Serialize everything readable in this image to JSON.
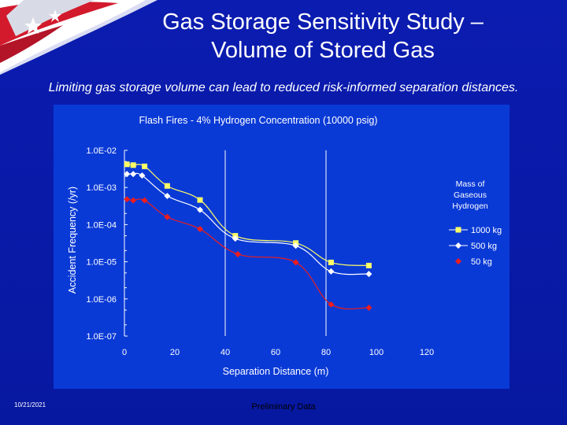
{
  "slide": {
    "title_line1": "Gas Storage Sensitivity Study –",
    "title_line2": "Volume of Stored Gas",
    "subtitle": "Limiting gas storage volume can lead to reduced risk-informed separation distances.",
    "date": "10/21/2021",
    "footer": "Preliminary Data"
  },
  "colors": {
    "background": "#0a1aa8",
    "chart_background": "#0a3ad6",
    "text": "#ffffff",
    "grid": "#ffffff",
    "series_1000kg": "#ffff66",
    "series_500kg": "#ffffff",
    "series_50kg": "#ee1c1c"
  },
  "chart_data": {
    "type": "line",
    "title": "Flash Fires - 4% Hydrogen Concentration (10000 psig)",
    "xlabel": "Separation Distance (m)",
    "ylabel": "Accident Frequency (/yr)",
    "y_scale": "log",
    "xlim": [
      0,
      120
    ],
    "ylim": [
      1e-07,
      0.01
    ],
    "x_ticks": [
      "0",
      "20",
      "40",
      "60",
      "80",
      "100",
      "120"
    ],
    "y_ticks": [
      "1.0E-02",
      "1.0E-03",
      "1.0E-04",
      "1.0E-05",
      "1.0E-06",
      "1.0E-07"
    ],
    "y_tick_values": [
      0.01,
      0.001,
      0.0001,
      1e-05,
      1e-06,
      1e-07
    ],
    "vertical_gridlines": [
      40,
      80
    ],
    "legend_title": "Mass of Gaseous Hydrogen",
    "legend_position": "right",
    "series": [
      {
        "name": "1000 kg",
        "marker": "square",
        "color": "#ffff66",
        "points": [
          [
            1,
            0.0042
          ],
          [
            3.5,
            0.004
          ],
          [
            8,
            0.0037
          ],
          [
            17,
            0.0011
          ],
          [
            30,
            0.00046
          ],
          [
            44,
            5e-05
          ],
          [
            68,
            3.2e-05
          ],
          [
            82,
            9.6e-06
          ],
          [
            97,
            7.9e-06
          ]
        ]
      },
      {
        "name": "500 kg",
        "marker": "diamond",
        "color": "#ffffff",
        "points": [
          [
            1,
            0.0023
          ],
          [
            3.5,
            0.0023
          ],
          [
            7,
            0.0021
          ],
          [
            17,
            0.00059
          ],
          [
            30,
            0.00025
          ],
          [
            44,
            4.2e-05
          ],
          [
            68,
            2.7e-05
          ],
          [
            82,
            5.5e-06
          ],
          [
            97,
            4.7e-06
          ]
        ]
      },
      {
        "name": "50 kg",
        "marker": "diamond",
        "color": "#ee1c1c",
        "points": [
          [
            1,
            0.00048
          ],
          [
            3.5,
            0.00045
          ],
          [
            8,
            0.00045
          ],
          [
            17,
            0.00016
          ],
          [
            30,
            7.6e-05
          ],
          [
            45,
            1.6e-05
          ],
          [
            68,
            9.6e-06
          ],
          [
            82,
            7.1e-07
          ],
          [
            97,
            5.8e-07
          ]
        ]
      }
    ]
  }
}
